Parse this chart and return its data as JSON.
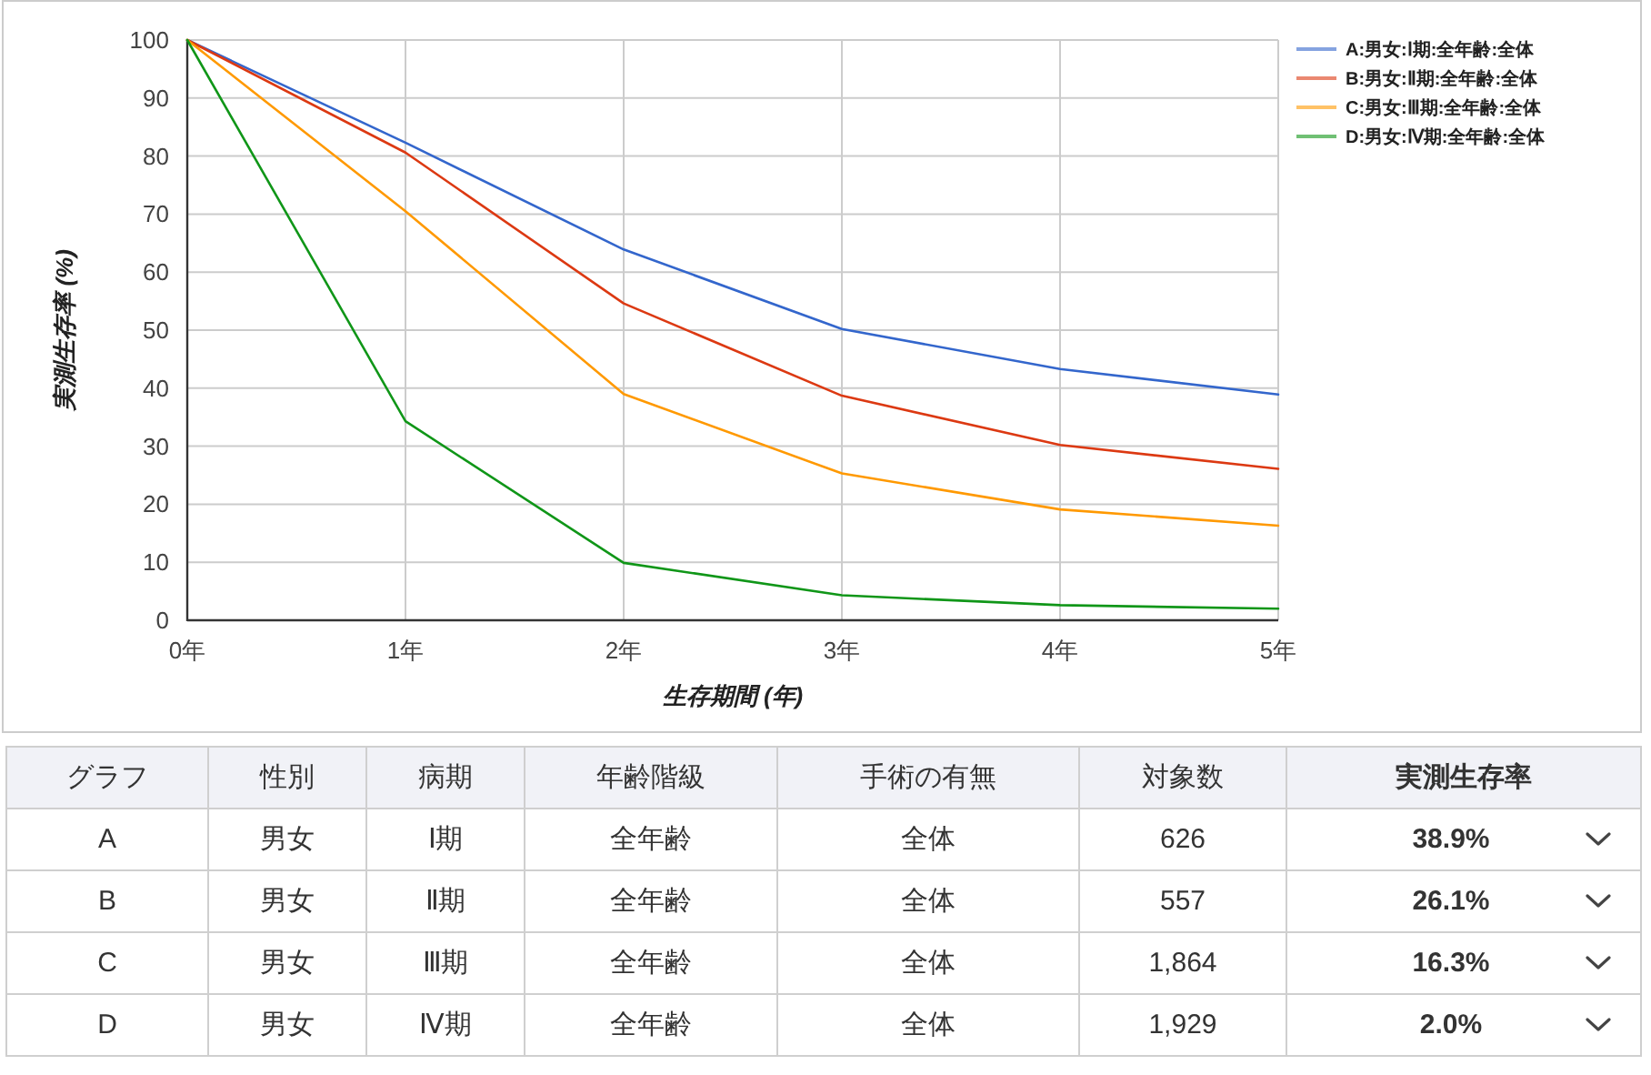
{
  "chart_data": [
    {
      "type": "line",
      "xlabel": "生存期間 (年)",
      "ylabel": "実測生存率 (%)",
      "categories": [
        "0年",
        "1年",
        "2年",
        "3年",
        "4年",
        "5年"
      ],
      "ylim": [
        0,
        100
      ],
      "yticks": [
        0,
        10,
        20,
        30,
        40,
        50,
        60,
        70,
        80,
        90,
        100
      ],
      "grid": true,
      "legend": "top right",
      "series": [
        {
          "name": "A:男女:Ⅰ期:全年齢:全体",
          "color": "#3366cc",
          "values": [
            100,
            82.3,
            63.9,
            50.2,
            43.3,
            38.9
          ]
        },
        {
          "name": "B:男女:Ⅱ期:全年齢:全体",
          "color": "#dc3912",
          "values": [
            100,
            80.6,
            54.6,
            38.7,
            30.2,
            26.1
          ]
        },
        {
          "name": "C:男女:Ⅲ期:全年齢:全体",
          "color": "#ff9900",
          "values": [
            100,
            70.5,
            39.0,
            25.3,
            19.1,
            16.3
          ]
        },
        {
          "name": "D:男女:Ⅳ期:全年齢:全体",
          "color": "#109618",
          "values": [
            100,
            34.3,
            9.9,
            4.3,
            2.6,
            2.0
          ]
        }
      ]
    },
    {
      "type": "other",
      "categories": [
        "グラフ",
        "性別",
        "病期",
        "年齢階級",
        "手術の有無",
        "対象数",
        "実測生存率"
      ],
      "cell_labels": [
        [
          "A",
          "男女",
          "Ⅰ期",
          "全年齢",
          "全体",
          "626",
          "38.9%"
        ],
        [
          "B",
          "男女",
          "Ⅱ期",
          "全年齢",
          "全体",
          "557",
          "26.1%"
        ],
        [
          "C",
          "男女",
          "Ⅲ期",
          "全年齢",
          "全体",
          "1,864",
          "16.3%"
        ],
        [
          "D",
          "男女",
          "Ⅳ期",
          "全年齢",
          "全体",
          "1,929",
          "2.0%"
        ]
      ]
    }
  ]
}
